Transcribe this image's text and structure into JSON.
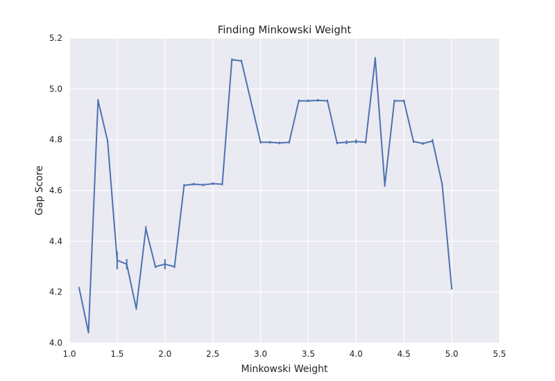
{
  "chart_data": {
    "type": "line",
    "title": "Finding Minkowski Weight",
    "xlabel": "Minkowski Weight",
    "ylabel": "Gap Score",
    "xlim": [
      1.0,
      5.5
    ],
    "ylim": [
      4.0,
      5.2
    ],
    "xticks": [
      "1.0",
      "1.5",
      "2.0",
      "2.5",
      "3.0",
      "3.5",
      "4.0",
      "4.5",
      "5.0",
      "5.5"
    ],
    "yticks": [
      "4.0",
      "4.2",
      "4.4",
      "4.6",
      "4.8",
      "5.0",
      "5.2"
    ],
    "grid": true,
    "series": [
      {
        "color": "#4c72b0",
        "points": [
          {
            "x": 1.1,
            "y": 4.22,
            "err": 0.0
          },
          {
            "x": 1.2,
            "y": 4.04,
            "err": 0.0
          },
          {
            "x": 1.3,
            "y": 4.955,
            "err": 0.005
          },
          {
            "x": 1.4,
            "y": 4.795,
            "err": 0.005
          },
          {
            "x": 1.5,
            "y": 4.325,
            "err": 0.035
          },
          {
            "x": 1.6,
            "y": 4.31,
            "err": 0.02
          },
          {
            "x": 1.7,
            "y": 4.135,
            "err": 0.005
          },
          {
            "x": 1.8,
            "y": 4.45,
            "err": 0.01
          },
          {
            "x": 1.9,
            "y": 4.3,
            "err": 0.005
          },
          {
            "x": 2.0,
            "y": 4.31,
            "err": 0.02
          },
          {
            "x": 2.1,
            "y": 4.3,
            "err": 0.005
          },
          {
            "x": 2.2,
            "y": 4.62,
            "err": 0.005
          },
          {
            "x": 2.3,
            "y": 4.625,
            "err": 0.005
          },
          {
            "x": 2.4,
            "y": 4.622,
            "err": 0.005
          },
          {
            "x": 2.5,
            "y": 4.627,
            "err": 0.005
          },
          {
            "x": 2.6,
            "y": 4.625,
            "err": 0.005
          },
          {
            "x": 2.7,
            "y": 5.115,
            "err": 0.005
          },
          {
            "x": 2.8,
            "y": 5.11,
            "err": 0.005
          },
          {
            "x": 3.0,
            "y": 4.79,
            "err": 0.005
          },
          {
            "x": 3.1,
            "y": 4.79,
            "err": 0.005
          },
          {
            "x": 3.2,
            "y": 4.787,
            "err": 0.005
          },
          {
            "x": 3.3,
            "y": 4.79,
            "err": 0.005
          },
          {
            "x": 3.4,
            "y": 4.953,
            "err": 0.005
          },
          {
            "x": 3.5,
            "y": 4.953,
            "err": 0.005
          },
          {
            "x": 3.6,
            "y": 4.955,
            "err": 0.005
          },
          {
            "x": 3.7,
            "y": 4.953,
            "err": 0.005
          },
          {
            "x": 3.8,
            "y": 4.787,
            "err": 0.005
          },
          {
            "x": 3.9,
            "y": 4.79,
            "err": 0.008
          },
          {
            "x": 4.0,
            "y": 4.793,
            "err": 0.008
          },
          {
            "x": 4.1,
            "y": 4.79,
            "err": 0.005
          },
          {
            "x": 4.2,
            "y": 5.12,
            "err": 0.005
          },
          {
            "x": 4.3,
            "y": 4.62,
            "err": 0.005
          },
          {
            "x": 4.4,
            "y": 4.953,
            "err": 0.005
          },
          {
            "x": 4.5,
            "y": 4.953,
            "err": 0.005
          },
          {
            "x": 4.6,
            "y": 4.793,
            "err": 0.005
          },
          {
            "x": 4.7,
            "y": 4.785,
            "err": 0.005
          },
          {
            "x": 4.8,
            "y": 4.795,
            "err": 0.008
          },
          {
            "x": 4.9,
            "y": 4.625,
            "err": 0.005
          },
          {
            "x": 5.0,
            "y": 4.215,
            "err": 0.005
          }
        ]
      }
    ]
  }
}
